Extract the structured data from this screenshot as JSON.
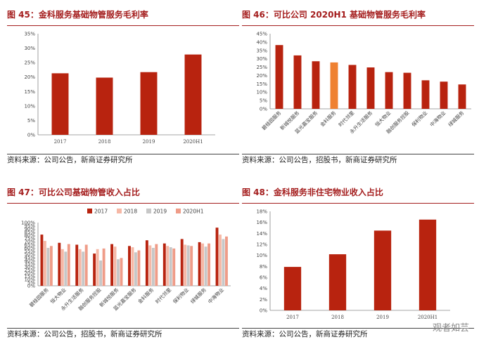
{
  "colors": {
    "accent": "#a41d1d",
    "bar_red": "#b8230f",
    "bar_orange": "#ef8131",
    "series": [
      "#b8230f",
      "#f6b8a6",
      "#c7c7c7",
      "#ef9c88"
    ]
  },
  "panels": {
    "p45": {
      "title": "图 45：金科服务基础物管服务毛利率",
      "source": "资料来源：公司公告，新商证券研究所"
    },
    "p46": {
      "title": "图 46：可比公司 2020H1 基础物管服务毛利率",
      "source": "资料来源：公司公告，招股书，新商证券研究所"
    },
    "p47": {
      "title": "图 47：可比公司基础物管收入占比",
      "source": "资料来源：公司公告，招股书，新商证券研究所"
    },
    "p48": {
      "title": "图 48：金科服务非住宅物业收入占比",
      "source": "资料来源：公司公告，新商证券研究所"
    }
  },
  "watermark": "观者如芸",
  "chart_data": [
    {
      "id": "fig45",
      "type": "bar",
      "title": "图 45：金科服务基础物管服务毛利率",
      "categories": [
        "2017",
        "2018",
        "2019",
        "2020H1"
      ],
      "values": [
        21.3,
        19.8,
        21.7,
        27.8
      ],
      "unit": "%",
      "ylim": [
        0,
        35
      ],
      "yticks": [
        0,
        5,
        10,
        15,
        20,
        25,
        30,
        35
      ],
      "ytick_labels": [
        "0%",
        "5%",
        "10%",
        "15%",
        "20%",
        "25%",
        "30%",
        "35%"
      ],
      "xlabel": "",
      "ylabel": "",
      "grid": false
    },
    {
      "id": "fig46",
      "type": "bar",
      "title": "图 46：可比公司 2020H1 基础物管服务毛利率",
      "categories": [
        "碧桂园服务",
        "新城悦服务",
        "蓝光嘉宝服务",
        "金科服务",
        "时代邻里",
        "永升生活服务",
        "恒大物业",
        "融创服务控股",
        "保利物业",
        "中海物业",
        "绿城服务"
      ],
      "values": [
        38.2,
        32.0,
        28.5,
        27.8,
        26.3,
        24.8,
        22.0,
        21.6,
        17.1,
        16.3,
        14.6
      ],
      "highlight_index": 3,
      "unit": "%",
      "ylim": [
        0,
        45
      ],
      "yticks": [
        0,
        5,
        10,
        15,
        20,
        25,
        30,
        35,
        40,
        45
      ],
      "ytick_labels": [
        "0%",
        "5%",
        "10%",
        "15%",
        "20%",
        "25%",
        "30%",
        "35%",
        "40%",
        "45%"
      ],
      "xlabel": "",
      "ylabel": "",
      "grid": false
    },
    {
      "id": "fig47",
      "type": "bar",
      "title": "图 47：可比公司基础物管收入占比",
      "categories": [
        "碧桂园服务",
        "恒大物业",
        "永升生活服务",
        "融创服务控股",
        "新城悦服务",
        "蓝光嘉宝服务",
        "金科服务",
        "时代邻里",
        "保利物业",
        "绿城服务",
        "中海物业"
      ],
      "series": [
        {
          "name": "2017",
          "values": [
            81,
            68,
            65,
            51,
            66,
            63,
            72,
            67,
            74,
            69,
            92
          ]
        },
        {
          "name": "2018",
          "values": [
            71,
            58,
            58,
            58,
            62,
            61,
            64,
            63,
            65,
            67,
            81
          ]
        },
        {
          "name": "2019",
          "values": [
            60,
            54,
            54,
            40,
            42,
            53,
            60,
            61,
            64,
            62,
            74
          ]
        },
        {
          "name": "2020H1",
          "values": [
            63,
            66,
            65,
            59,
            44,
            56,
            66,
            59,
            63,
            67,
            78
          ]
        }
      ],
      "legend_position": "top",
      "unit": "%",
      "ylim": [
        0,
        100
      ],
      "yticks": [
        0,
        5,
        10,
        15,
        20,
        25,
        30,
        35,
        40,
        45,
        50,
        55,
        60,
        65,
        70,
        75,
        80,
        85,
        90,
        95,
        100
      ],
      "ytick_labels": [
        "0%",
        "5%",
        "10%",
        "15%",
        "20%",
        "25%",
        "30%",
        "35%",
        "40%",
        "45%",
        "50%",
        "55%",
        "60%",
        "65%",
        "70%",
        "75%",
        "80%",
        "85%",
        "90%",
        "95%",
        "100%"
      ],
      "xlabel": "",
      "ylabel": "",
      "grid": false
    },
    {
      "id": "fig48",
      "type": "bar",
      "title": "图 48：金科服务非住宅物业收入占比",
      "categories": [
        "2017",
        "2018",
        "2019",
        "2020H1"
      ],
      "values": [
        7.9,
        10.2,
        14.5,
        16.5
      ],
      "unit": "%",
      "ylim": [
        0,
        18
      ],
      "yticks": [
        0,
        2,
        4,
        6,
        8,
        10,
        12,
        14,
        16,
        18
      ],
      "ytick_labels": [
        "0%",
        "2%",
        "4%",
        "6%",
        "8%",
        "10%",
        "12%",
        "14%",
        "16%",
        "18%"
      ],
      "xlabel": "",
      "ylabel": "",
      "grid": false
    }
  ]
}
